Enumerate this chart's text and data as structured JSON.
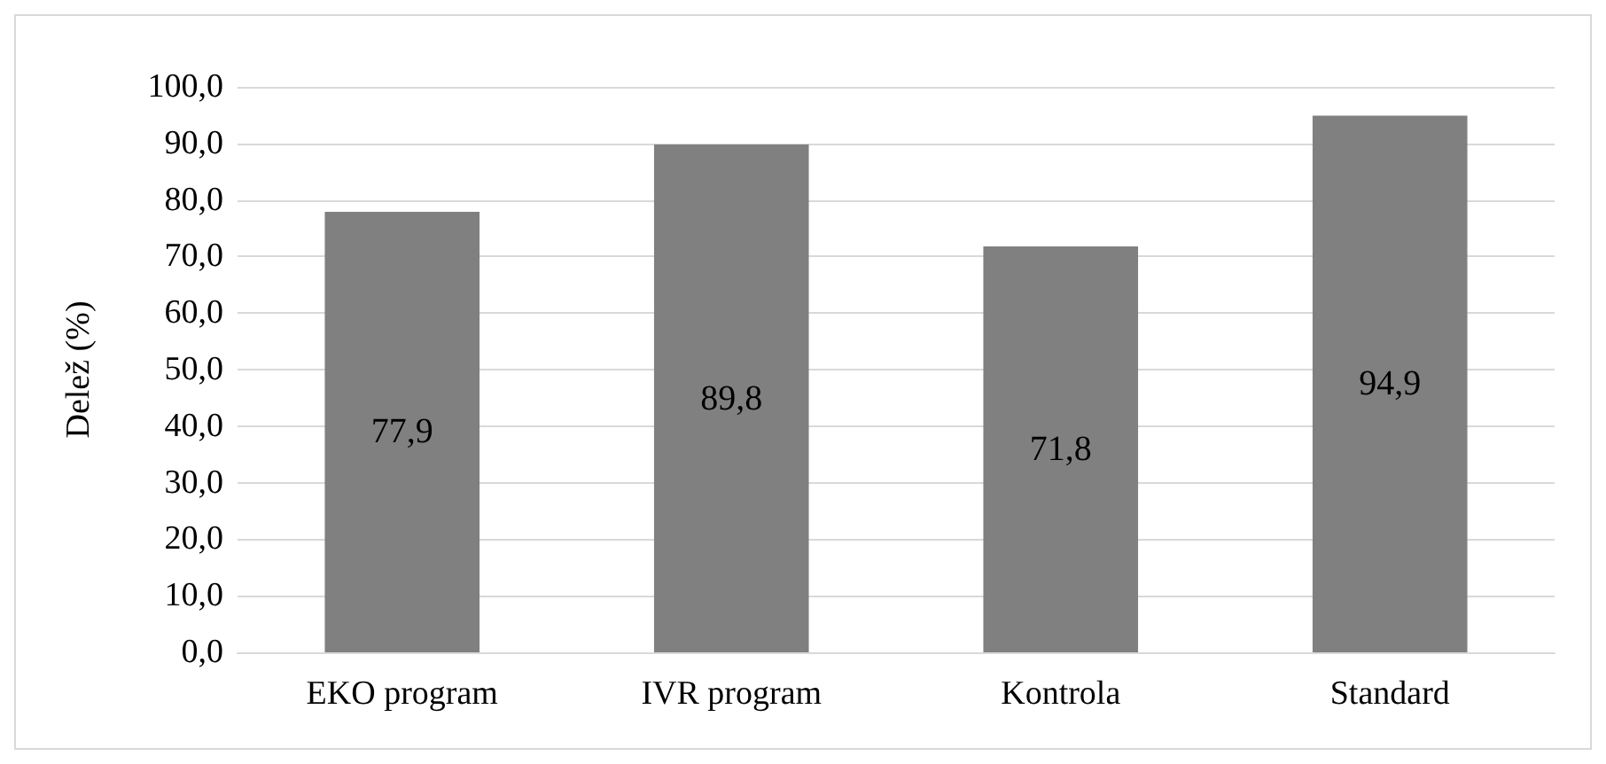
{
  "chart_data": {
    "type": "bar",
    "ylabel": "Delež (%)",
    "categories": [
      "EKO program",
      "IVR program",
      "Kontrola",
      "Standard"
    ],
    "values": [
      77.9,
      89.8,
      71.8,
      94.9
    ],
    "value_labels": [
      "77,9",
      "89,8",
      "71,8",
      "94,9"
    ],
    "color": "#808080",
    "ylim": [
      0,
      100
    ],
    "yticks": [
      {
        "value": 0,
        "label": "0,0"
      },
      {
        "value": 10,
        "label": "10,0"
      },
      {
        "value": 20,
        "label": "20,0"
      },
      {
        "value": 30,
        "label": "30,0"
      },
      {
        "value": 40,
        "label": "40,0"
      },
      {
        "value": 50,
        "label": "50,0"
      },
      {
        "value": 60,
        "label": "60,0"
      },
      {
        "value": 70,
        "label": "70,0"
      },
      {
        "value": 80,
        "label": "80,0"
      },
      {
        "value": 90,
        "label": "90,0"
      },
      {
        "value": 100,
        "label": "100,0"
      }
    ],
    "grid": "y"
  }
}
